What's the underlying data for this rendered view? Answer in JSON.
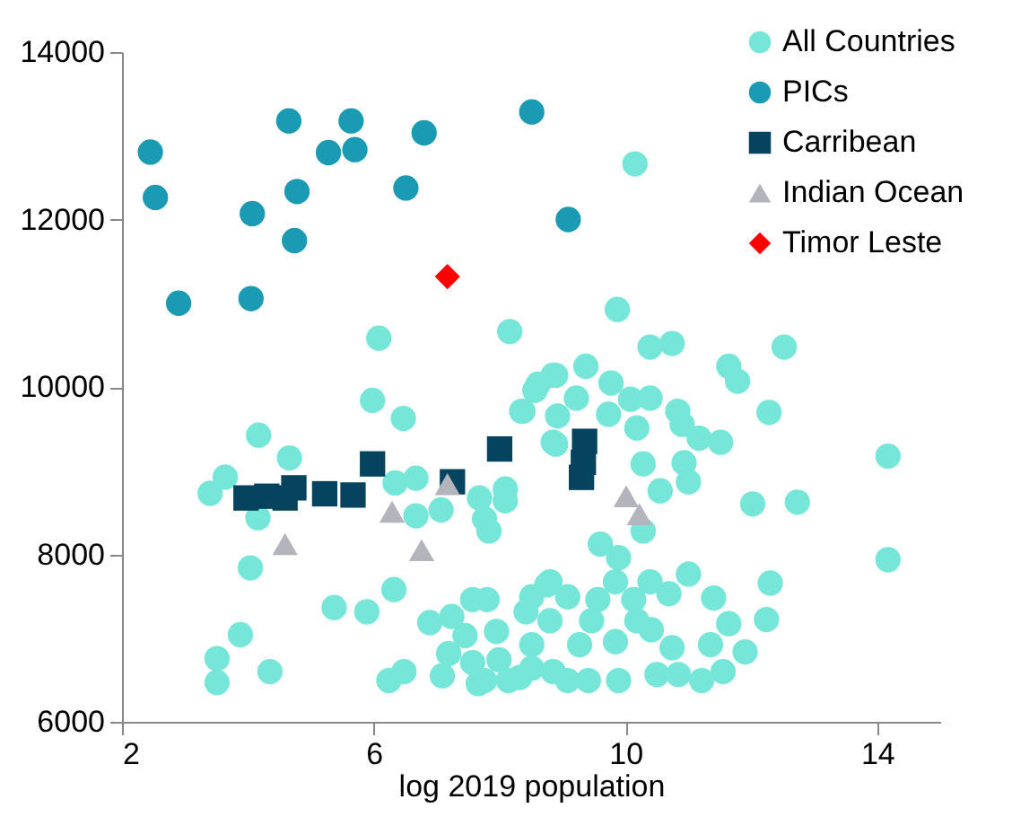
{
  "chart_data": {
    "type": "scatter",
    "xlabel": "log 2019 population",
    "xlim": [
      2,
      15
    ],
    "xticks": [
      2,
      6,
      10,
      14
    ],
    "ylim": [
      6000,
      14000
    ],
    "yticks": [
      6000,
      8000,
      10000,
      12000,
      14000
    ],
    "grid": false,
    "legend": "top right",
    "series": [
      {
        "name": "All Countries",
        "color": "#76e6d9",
        "marker": "circle",
        "x": [
          10.15,
          9.87,
          6.08,
          8.16,
          5.98,
          6.47,
          4.17,
          4.66,
          3.64,
          3.4,
          4.16,
          4.04,
          6.34,
          6.67,
          6.67,
          7.07,
          7.68,
          8.09,
          8.09,
          7.76,
          7.83,
          8.85,
          8.37,
          8.56,
          8.85,
          6.32,
          5.37,
          5.89,
          3.88,
          3.51,
          3.51,
          4.35,
          6.24,
          6.48,
          7.09,
          6.89,
          7.24,
          7.45,
          7.57,
          7.8,
          7.95,
          7.19,
          7.57,
          7.66,
          7.99,
          8.32,
          8.51,
          8.51,
          8.75,
          8.8,
          8.85,
          10.39,
          10.74,
          12.52,
          11.64,
          11.78,
          9.37,
          8.61,
          8.89,
          9.22,
          9.77,
          10.08,
          10.39,
          8.35,
          8.92,
          9.73,
          10.83,
          10.9,
          10.18,
          12.28,
          11.17,
          11.51,
          8.89,
          10.28,
          10.93,
          11.0,
          14.17,
          10.55,
          12.02,
          12.73,
          10.28,
          9.6,
          9.89,
          14.17,
          11.0,
          10.39,
          12.3,
          11.4,
          12.24,
          11.64,
          11.9,
          11.35,
          11.55,
          11.21,
          10.84,
          10.5,
          10.74,
          10.13,
          9.84,
          10.69,
          10.41,
          9.84,
          9.89,
          9.27,
          9.08,
          9.56,
          9.08,
          8.8,
          8.42,
          8.51,
          8.14,
          7.76,
          9.41,
          9.46,
          10.18
        ],
        "values": [
          12664,
          10926,
          10583,
          10661,
          9839,
          9624,
          9424,
          9152,
          8923,
          8730,
          8438,
          7838,
          8853,
          8910,
          8460,
          8531,
          8674,
          8781,
          8640,
          8423,
          8280,
          9340,
          9710,
          9960,
          10140,
          7580,
          7365,
          7315,
          7040,
          6755,
          6470,
          6600,
          6493,
          6600,
          6550,
          7186,
          7258,
          7030,
          7460,
          7460,
          7080,
          6815,
          6707,
          6456,
          6740,
          6530,
          6922,
          7494,
          7636,
          7207,
          6600,
          10476,
          10519,
          10476,
          10247,
          10069,
          10247,
          10032,
          10139,
          9867,
          10047,
          9853,
          9867,
          9710,
          9653,
          9674,
          9710,
          9553,
          9510,
          9696,
          9388,
          9339,
          9317,
          9081,
          9095,
          8867,
          9174,
          8760,
          8602,
          8624,
          8280,
          8123,
          7960,
          7937,
          7765,
          7672,
          7658,
          7479,
          7222,
          7172,
          6836,
          6922,
          6600,
          6493,
          6565,
          6565,
          6885,
          7460,
          7672,
          7530,
          7100,
          6958,
          6493,
          6922,
          6493,
          7460,
          7494,
          7672,
          7315,
          6640,
          6493,
          6493,
          6493,
          7207,
          7207
        ]
      },
      {
        "name": "PICs",
        "color": "#1b9ab4",
        "marker": "circle",
        "x": [
          2.45,
          2.53,
          2.9,
          4.05,
          4.07,
          4.65,
          4.78,
          4.74,
          5.28,
          5.64,
          5.7,
          6.51,
          6.8,
          8.51,
          9.09
        ],
        "values": [
          12805,
          12263,
          11000,
          11055,
          12070,
          13178,
          12334,
          11748,
          12799,
          13178,
          12835,
          12376,
          13035,
          13285,
          12000
        ]
      },
      {
        "name": "Carribean",
        "color": "#06435e",
        "marker": "square",
        "x": [
          3.97,
          4.3,
          4.59,
          4.73,
          5.22,
          5.67,
          5.98,
          7.25,
          8.0,
          9.35,
          9.33,
          9.3
        ],
        "values": [
          8674,
          8695,
          8674,
          8795,
          8724,
          8709,
          9081,
          8867,
          9259,
          9350,
          9100,
          8920
        ]
      },
      {
        "name": "Indian Ocean",
        "color": "#b4b4bc",
        "marker": "triangle",
        "x": [
          4.59,
          6.29,
          6.76,
          7.17,
          10.01,
          10.22
        ],
        "values": [
          8123,
          8509,
          8052,
          8838,
          8695,
          8481
        ]
      },
      {
        "name": "Timor Leste",
        "color": "#ff0000",
        "marker": "diamond",
        "x": [
          7.17
        ],
        "values": [
          11318
        ]
      }
    ]
  }
}
